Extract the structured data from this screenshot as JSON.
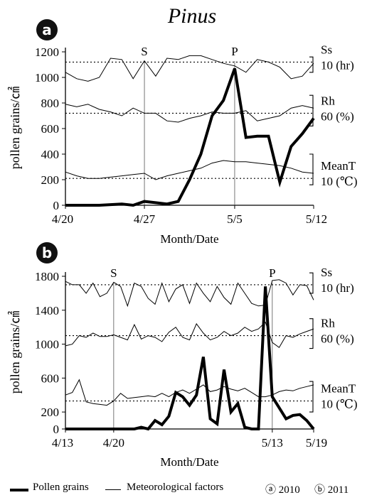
{
  "figure_title": "Pinus",
  "legend": {
    "pollen_label": "Pollen grains",
    "met_label": "Meteorological factors",
    "panel_a_key": "ⓐ 2010",
    "panel_b_key": "ⓑ 2011"
  },
  "chart_data": [
    {
      "type": "line",
      "panel": "a",
      "panel_label": "a",
      "title": "",
      "xlabel": "Month/Date",
      "ylabel": "pollen grains/㎠",
      "ylim": [
        0,
        1200
      ],
      "yticks": [
        "0",
        "200",
        "400",
        "600",
        "800",
        "1000",
        "1200"
      ],
      "ytick_values": [
        0,
        200,
        400,
        600,
        800,
        1000,
        1200
      ],
      "xticks": [
        "4/20",
        "4/27",
        "5/5",
        "5/12"
      ],
      "xtick_days": [
        0,
        7,
        15,
        22
      ],
      "markers": [
        {
          "label": "S",
          "day": 7
        },
        {
          "label": "P",
          "day": 15
        }
      ],
      "right_labels": [
        {
          "name": "Ss",
          "ref": "10 (hr)",
          "ref_y": 1120
        },
        {
          "name": "Rh",
          "ref": "60 (%)",
          "ref_y": 720
        },
        {
          "name": "MeanT",
          "ref": "10 (℃)",
          "ref_y": 210
        }
      ],
      "series": [
        {
          "name": "Pollen grains",
          "style": "bold",
          "x": [
            0,
            1,
            2,
            3,
            4,
            5,
            6,
            7,
            8,
            9,
            10,
            11,
            12,
            13,
            14,
            15,
            16,
            17,
            18,
            19,
            20,
            21,
            22
          ],
          "values": [
            0,
            0,
            0,
            0,
            5,
            10,
            0,
            30,
            20,
            10,
            30,
            200,
            400,
            700,
            820,
            1070,
            530,
            540,
            540,
            180,
            460,
            560,
            680
          ]
        },
        {
          "name": "Ss",
          "style": "thin",
          "x": [
            0,
            1,
            2,
            3,
            4,
            5,
            6,
            7,
            8,
            9,
            10,
            11,
            12,
            13,
            14,
            15,
            16,
            17,
            18,
            19,
            20,
            21,
            22
          ],
          "values": [
            1040,
            990,
            970,
            1000,
            1150,
            1140,
            990,
            1130,
            1010,
            1150,
            1140,
            1170,
            1170,
            1140,
            1110,
            1090,
            1040,
            1140,
            1120,
            1080,
            990,
            1010,
            1110
          ]
        },
        {
          "name": "Rh",
          "style": "thin",
          "x": [
            0,
            1,
            2,
            3,
            4,
            5,
            6,
            7,
            8,
            9,
            10,
            11,
            12,
            13,
            14,
            15,
            16,
            17,
            18,
            19,
            20,
            21,
            22
          ],
          "values": [
            790,
            770,
            790,
            750,
            730,
            700,
            760,
            720,
            720,
            660,
            650,
            680,
            700,
            730,
            720,
            720,
            740,
            660,
            680,
            700,
            760,
            780,
            760
          ]
        },
        {
          "name": "MeanT",
          "style": "thin",
          "x": [
            0,
            1,
            2,
            3,
            4,
            5,
            6,
            7,
            8,
            9,
            10,
            11,
            12,
            13,
            14,
            15,
            16,
            17,
            18,
            19,
            20,
            21,
            22
          ],
          "values": [
            260,
            230,
            210,
            210,
            220,
            230,
            240,
            250,
            200,
            230,
            250,
            270,
            290,
            330,
            350,
            340,
            340,
            330,
            320,
            310,
            290,
            260,
            250
          ]
        }
      ]
    },
    {
      "type": "line",
      "panel": "b",
      "panel_label": "b",
      "title": "",
      "xlabel": "Month/Date",
      "ylabel": "pollen grains/㎠",
      "ylim": [
        0,
        1800
      ],
      "yticks": [
        "0",
        "200",
        "600",
        "1000",
        "1400",
        "1800"
      ],
      "ytick_values": [
        0,
        200,
        600,
        1000,
        1400,
        1800
      ],
      "xticks": [
        "4/13",
        "4/20",
        "5/13",
        "5/19"
      ],
      "xtick_days": [
        0,
        7,
        30,
        36
      ],
      "markers": [
        {
          "label": "S",
          "day": 7
        },
        {
          "label": "P",
          "day": 30
        }
      ],
      "right_labels": [
        {
          "name": "Ss",
          "ref": "10 (hr)",
          "ref_y": 1700
        },
        {
          "name": "Rh",
          "ref": "60 (%)",
          "ref_y": 1100
        },
        {
          "name": "MeanT",
          "ref": "10 (℃)",
          "ref_y": 330
        }
      ],
      "series": [
        {
          "name": "Pollen grains",
          "style": "bold",
          "x": [
            0,
            1,
            2,
            3,
            4,
            5,
            6,
            7,
            8,
            9,
            10,
            11,
            12,
            13,
            14,
            15,
            16,
            17,
            18,
            19,
            20,
            21,
            22,
            23,
            24,
            25,
            26,
            27,
            28,
            29,
            30,
            31,
            32,
            33,
            34,
            35,
            36
          ],
          "values": [
            0,
            0,
            0,
            0,
            0,
            0,
            0,
            0,
            0,
            0,
            0,
            20,
            0,
            100,
            50,
            150,
            430,
            380,
            280,
            400,
            850,
            120,
            60,
            700,
            200,
            300,
            20,
            0,
            0,
            1680,
            380,
            250,
            120,
            160,
            170,
            100,
            0
          ]
        },
        {
          "name": "Ss",
          "style": "thin",
          "x": [
            0,
            1,
            2,
            3,
            4,
            5,
            6,
            7,
            8,
            9,
            10,
            11,
            12,
            13,
            14,
            15,
            16,
            17,
            18,
            19,
            20,
            21,
            22,
            23,
            24,
            25,
            26,
            27,
            28,
            29,
            30,
            31,
            32,
            33,
            34,
            35,
            36
          ],
          "values": [
            1740,
            1700,
            1700,
            1600,
            1720,
            1560,
            1600,
            1730,
            1680,
            1450,
            1720,
            1680,
            1540,
            1470,
            1720,
            1500,
            1650,
            1700,
            1480,
            1720,
            1600,
            1500,
            1680,
            1550,
            1470,
            1720,
            1600,
            1480,
            1450,
            1460,
            1750,
            1760,
            1720,
            1580,
            1700,
            1690,
            1520
          ]
        },
        {
          "name": "Rh",
          "style": "thin",
          "x": [
            0,
            1,
            2,
            3,
            4,
            5,
            6,
            7,
            8,
            9,
            10,
            11,
            12,
            13,
            14,
            15,
            16,
            17,
            18,
            19,
            20,
            21,
            22,
            23,
            24,
            25,
            26,
            27,
            28,
            29,
            30,
            31,
            32,
            33,
            34,
            35,
            36
          ],
          "values": [
            980,
            1000,
            1100,
            1080,
            1130,
            1090,
            1090,
            1110,
            1080,
            1050,
            1230,
            1060,
            1100,
            1080,
            1030,
            1140,
            1200,
            1080,
            1050,
            1240,
            1130,
            1050,
            1080,
            1150,
            1100,
            1130,
            1200,
            1150,
            1180,
            1260,
            1020,
            960,
            1100,
            1080,
            1120,
            1150,
            1180
          ]
        },
        {
          "name": "MeanT",
          "style": "thin",
          "x": [
            0,
            1,
            2,
            3,
            4,
            5,
            6,
            7,
            8,
            9,
            10,
            11,
            12,
            13,
            14,
            15,
            16,
            17,
            18,
            19,
            20,
            21,
            22,
            23,
            24,
            25,
            26,
            27,
            28,
            29,
            30,
            31,
            32,
            33,
            34,
            35,
            36
          ],
          "values": [
            400,
            430,
            580,
            320,
            300,
            290,
            280,
            330,
            420,
            360,
            370,
            380,
            390,
            380,
            420,
            380,
            430,
            460,
            420,
            470,
            520,
            440,
            460,
            500,
            470,
            450,
            480,
            430,
            380,
            380,
            400,
            440,
            460,
            450,
            480,
            500,
            520
          ]
        }
      ]
    }
  ]
}
